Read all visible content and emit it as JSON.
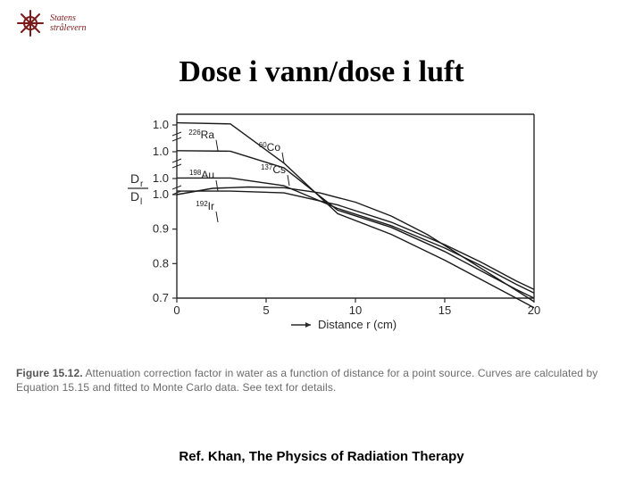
{
  "logo": {
    "line1": "Statens",
    "line2": "strålevern",
    "color": "#7a1a1a"
  },
  "title": "Dose i vann/dose i luft",
  "chart": {
    "type": "line",
    "background_color": "#ffffff",
    "axis_color": "#2a2a2a",
    "grid_color": "#2a2a2a",
    "stroke_width": 1.4,
    "font_family": "Arial",
    "x_axis": {
      "label": "Distance r (cm)",
      "label_fontsize": 13,
      "min": 0,
      "max": 20,
      "ticks": [
        0,
        5,
        10,
        15,
        20
      ],
      "tick_labels": [
        "0",
        "5",
        "10",
        "15",
        "20"
      ],
      "tick_fontsize": 13
    },
    "y_axis": {
      "label_html": "D_r / D_l",
      "label_sub1": "r",
      "label_sub2": "l",
      "label_top": "D",
      "label_fontsize": 14,
      "segments": [
        {
          "top": 1.0,
          "bottom": 1.0,
          "break_above": true
        },
        {
          "top": 1.0,
          "bottom": 1.0,
          "break_above": true
        },
        {
          "top": 1.0,
          "bottom": 1.0,
          "break_above": true
        },
        {
          "top": 1.0,
          "bottom": 0.7,
          "break_above": true
        }
      ],
      "tick_labels": [
        "1.0",
        "1.0",
        "1.0",
        "1.0",
        "0.9",
        "0.8",
        "0.7"
      ],
      "tick_fontsize": 13
    },
    "series": [
      {
        "name": "60Co",
        "label_main": "Co",
        "label_sup": "60",
        "color": "#1a1a1a",
        "points": [
          [
            0,
            1.02
          ],
          [
            3,
            1.01
          ],
          [
            6,
            0.985
          ],
          [
            9,
            0.945
          ],
          [
            12,
            0.885
          ],
          [
            15,
            0.81
          ],
          [
            17,
            0.755
          ],
          [
            19,
            0.7
          ],
          [
            20,
            0.672
          ]
        ],
        "panel_start": 0,
        "label_anchor": [
          6,
          0.985
        ]
      },
      {
        "name": "226Ra",
        "label_main": "Ra",
        "label_sup": "226",
        "color": "#1a1a1a",
        "points": [
          [
            0,
            1.01
          ],
          [
            3,
            1.005
          ],
          [
            6,
            0.99
          ],
          [
            9,
            0.955
          ],
          [
            12,
            0.905
          ],
          [
            15,
            0.835
          ],
          [
            17,
            0.78
          ],
          [
            19,
            0.725
          ],
          [
            20,
            0.7
          ]
        ],
        "panel_start": 1,
        "label_anchor": [
          2.3,
          1.01
        ]
      },
      {
        "name": "137Cs",
        "label_main": "Cs",
        "label_sup": "137",
        "color": "#1a1a1a",
        "points": [
          [
            0,
            1.005
          ],
          [
            3,
            1.005
          ],
          [
            6,
            0.99
          ],
          [
            9,
            0.96
          ],
          [
            12,
            0.91
          ],
          [
            15,
            0.845
          ],
          [
            17,
            0.795
          ],
          [
            19,
            0.74
          ],
          [
            20,
            0.715
          ]
        ],
        "panel_start": 2,
        "label_anchor": [
          6.3,
          0.99
        ]
      },
      {
        "name": "198Au",
        "label_main": "Au",
        "label_sup": "198",
        "color": "#1a1a1a",
        "points": [
          [
            0,
            1.01
          ],
          [
            3,
            1.01
          ],
          [
            6,
            1.005
          ],
          [
            9,
            0.97
          ],
          [
            12,
            0.92
          ],
          [
            15,
            0.855
          ],
          [
            17,
            0.805
          ],
          [
            19,
            0.75
          ],
          [
            20,
            0.725
          ]
        ],
        "panel_start": 3,
        "label_anchor": [
          2.3,
          1.01
        ]
      },
      {
        "name": "192Ir",
        "label_main": "Ir",
        "label_sup": "192",
        "color": "#1a1a1a",
        "points": [
          [
            0,
            1.0
          ],
          [
            2,
            1.018
          ],
          [
            4,
            1.022
          ],
          [
            6,
            1.02
          ],
          [
            8,
            1.005
          ],
          [
            10,
            0.978
          ],
          [
            12,
            0.938
          ],
          [
            14,
            0.885
          ],
          [
            16,
            0.82
          ],
          [
            18,
            0.755
          ],
          [
            20,
            0.69
          ]
        ],
        "panel_start": 3,
        "label_anchor": [
          2.3,
          0.92
        ]
      }
    ],
    "arrow_label": "→",
    "arrow_pos_x": 7.8,
    "panel_row_height": 24,
    "lower_panel_height": 116,
    "y_break_gap": 6
  },
  "caption": {
    "fig_num": "Figure 15.12.",
    "text": "Attenuation correction factor in water as a function of distance for a point source. Curves are calculated by Equation 15.15 and fitted to Monte Carlo data. See text for details.",
    "fontsize": 12,
    "color": "#6b6b6b"
  },
  "ref": "Ref. Khan, The Physics of Radiation Therapy"
}
